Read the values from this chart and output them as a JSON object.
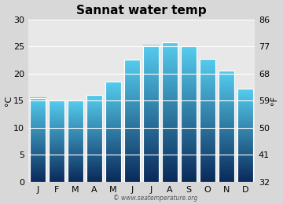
{
  "title": "Sannat water temp",
  "months": [
    "J",
    "F",
    "M",
    "A",
    "M",
    "J",
    "J",
    "A",
    "S",
    "O",
    "N",
    "D"
  ],
  "values_c": [
    15.5,
    15.0,
    15.0,
    16.0,
    18.5,
    22.5,
    25.2,
    25.7,
    25.0,
    22.7,
    20.5,
    17.2
  ],
  "ylim_c": [
    0,
    30
  ],
  "yticks_c": [
    0,
    5,
    10,
    15,
    20,
    25,
    30
  ],
  "ylim_f": [
    32,
    86
  ],
  "yticks_f": [
    32,
    41,
    50,
    59,
    68,
    77,
    86
  ],
  "ylabel_left": "°C",
  "ylabel_right": "°F",
  "watermark": "© www.seatemperature.org",
  "bar_color_top": "#55ccee",
  "bar_color_bottom": "#0a2a5a",
  "background_color": "#d8d8d8",
  "plot_bg_color": "#e8e8e8",
  "title_fontsize": 11,
  "axis_fontsize": 8,
  "tick_fontsize": 8,
  "bar_width": 0.85
}
